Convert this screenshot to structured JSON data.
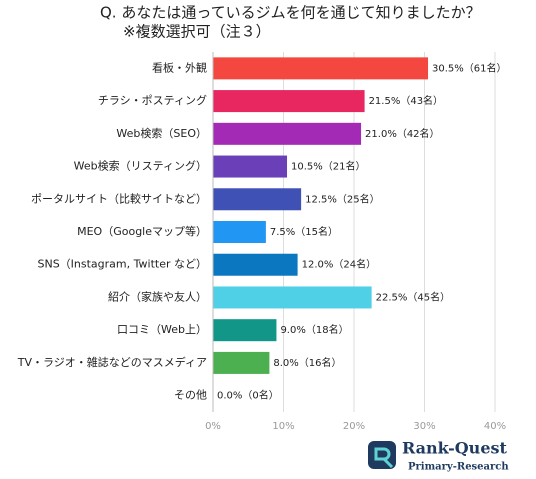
{
  "chart_data": {
    "type": "bar",
    "orientation": "horizontal",
    "title": [
      "Q. あなたは通っているジムを何を通じて知りましたか？",
      "※複数選択可（注３）"
    ],
    "categories": [
      "看板・外観",
      "チラシ・ポスティング",
      "Web検索（SEO）",
      "Web検索（リスティング）",
      "ポータルサイト（比較サイトなど）",
      "MEO（Googleマップ等）",
      "SNS（Instagram, Twitter など）",
      "紹介（家族や友人）",
      "口コミ（Web上）",
      "TV・ラジオ・雑誌などのマスメディア",
      "その他"
    ],
    "values": [
      30.5,
      21.5,
      21.0,
      10.5,
      12.5,
      7.5,
      12.0,
      22.5,
      9.0,
      8.0,
      0.0
    ],
    "value_labels": [
      "30.5%（61名）",
      "21.5%（43名）",
      "21.0%（42名）",
      "10.5%（21名）",
      "12.5%（25名）",
      "7.5%（15名）",
      "12.0%（24名）",
      "22.5%（45名）",
      "9.0%（18名）",
      "8.0%（16名）",
      "0.0%（0名）"
    ],
    "colors": [
      "#f4473f",
      "#e8265f",
      "#a22ab5",
      "#6a3fb8",
      "#3f51b5",
      "#2196f3",
      "#0a77c0",
      "#4fd0e6",
      "#129688",
      "#4caf50",
      "#8bc34a"
    ],
    "xlim": [
      0,
      40
    ],
    "xticks": [
      {
        "value": 0,
        "label": "0%"
      },
      {
        "value": 10,
        "label": "10%"
      },
      {
        "value": 20,
        "label": "20%"
      },
      {
        "value": 30,
        "label": "30%"
      },
      {
        "value": 40,
        "label": "40%"
      }
    ],
    "grid": true
  },
  "logo": {
    "name": "Rank-Quest",
    "tagline": "Primary-Research"
  }
}
